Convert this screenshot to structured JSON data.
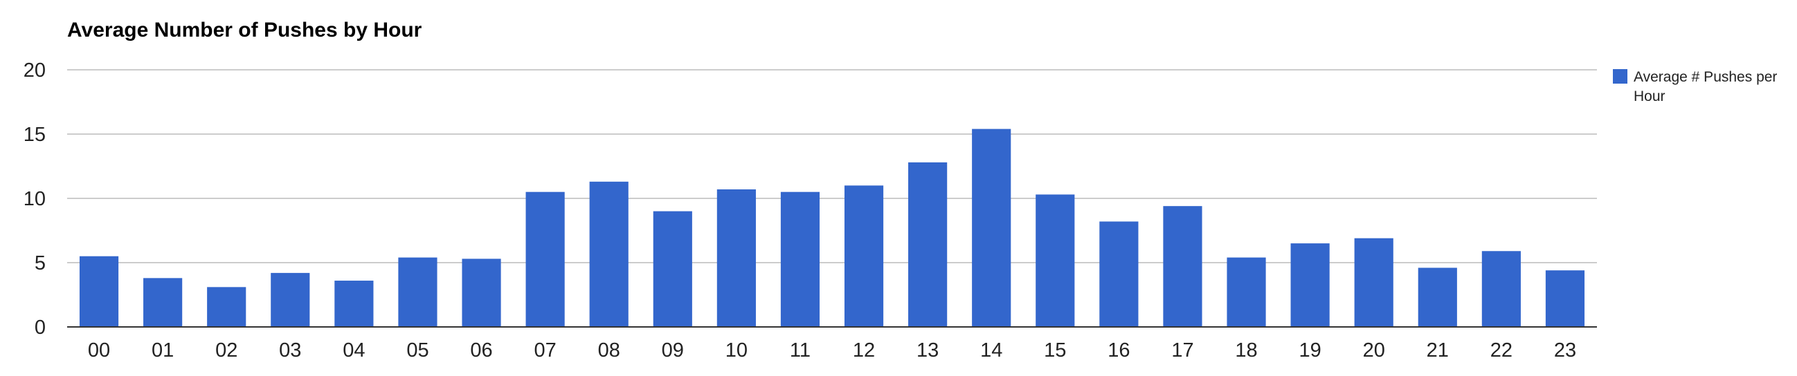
{
  "chart_data": {
    "type": "bar",
    "title": "Average Number of Pushes by Hour",
    "xlabel": "",
    "ylabel": "",
    "categories": [
      "00",
      "01",
      "02",
      "03",
      "04",
      "05",
      "06",
      "07",
      "08",
      "09",
      "10",
      "11",
      "12",
      "13",
      "14",
      "15",
      "16",
      "17",
      "18",
      "19",
      "20",
      "21",
      "22",
      "23"
    ],
    "series": [
      {
        "name": "Average # Pushes per Hour",
        "color": "#3366cc",
        "values": [
          5.5,
          3.8,
          3.1,
          4.2,
          3.6,
          5.4,
          5.3,
          10.5,
          11.3,
          9.0,
          10.7,
          10.5,
          11.0,
          12.8,
          15.4,
          10.3,
          8.2,
          9.4,
          5.4,
          6.5,
          6.9,
          4.6,
          5.9,
          4.4
        ]
      }
    ],
    "ylim": [
      0,
      20
    ],
    "yticks": [
      "0",
      "5",
      "10",
      "15",
      "20"
    ],
    "grid": true,
    "legend_position": "right"
  }
}
